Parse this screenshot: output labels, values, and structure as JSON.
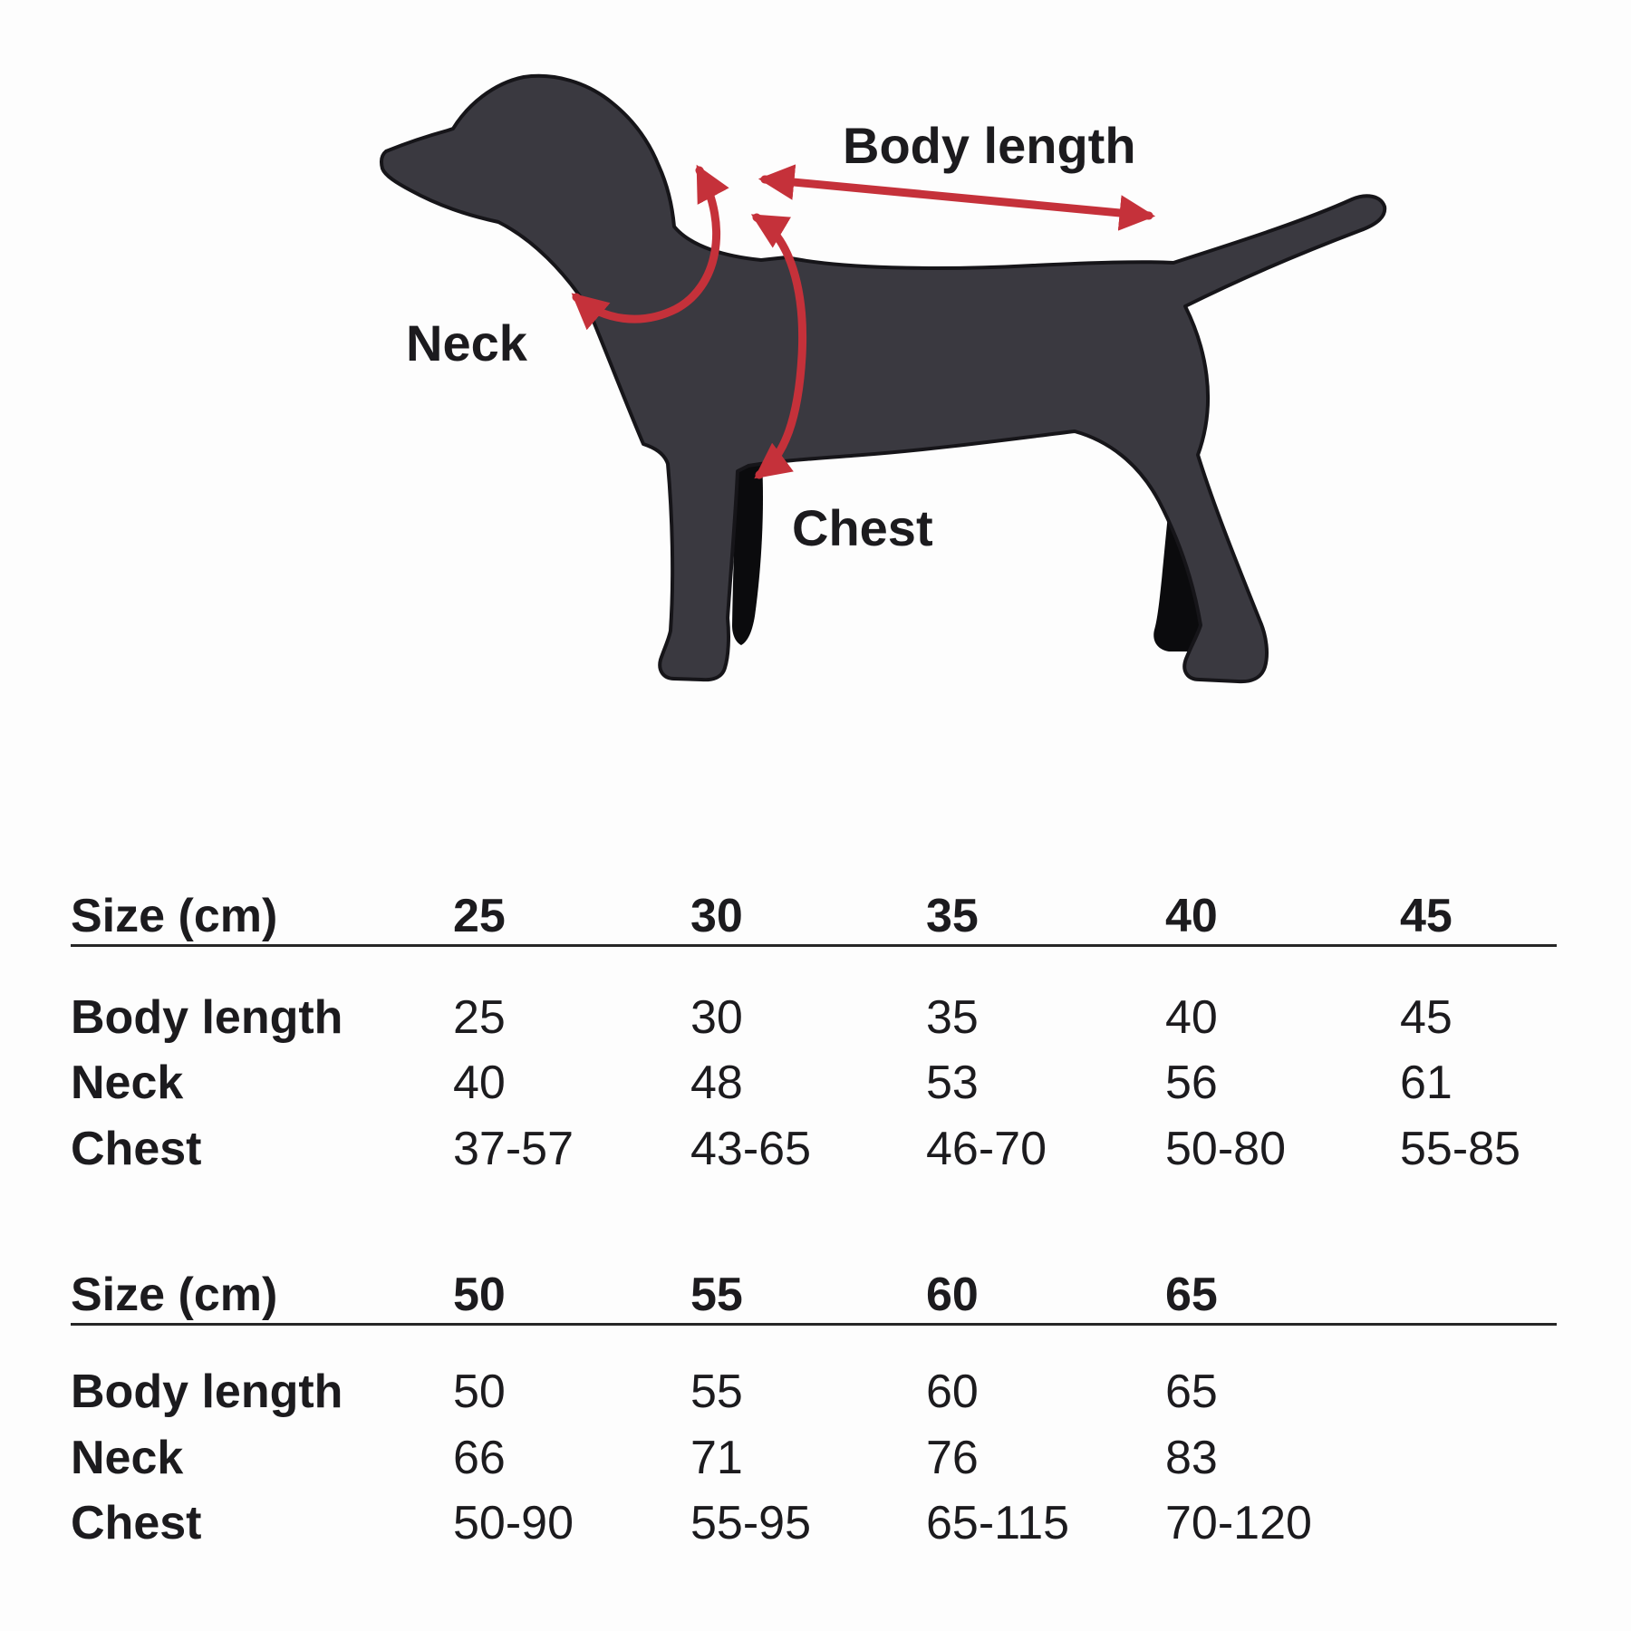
{
  "diagram": {
    "labels": {
      "body_length": "Body length",
      "neck": "Neck",
      "chest": "Chest"
    },
    "icons": [
      "dog-silhouette",
      "neck-girth-arrow",
      "chest-girth-arrow",
      "body-length-arrow"
    ],
    "colors": {
      "dog_body": "#3a3940",
      "dog_outline": "#161519",
      "far_leg": "#0b0b0d",
      "arrow_red": "#c5313a",
      "text": "#1c1b1e",
      "background": "#fdfdfd"
    }
  },
  "tables": [
    {
      "header": [
        "Size (cm)",
        "25",
        "30",
        "35",
        "40",
        "45"
      ],
      "rows": [
        {
          "label": "Body length",
          "values": [
            "25",
            "30",
            "35",
            "40",
            "45"
          ]
        },
        {
          "label": "Neck",
          "values": [
            "40",
            "48",
            "53",
            "56",
            "61"
          ]
        },
        {
          "label": "Chest",
          "values": [
            "37-57",
            "43-65",
            "46-70",
            "50-80",
            "55-85"
          ]
        }
      ]
    },
    {
      "header": [
        "Size (cm)",
        "50",
        "55",
        "60",
        "65"
      ],
      "rows": [
        {
          "label": "Body length",
          "values": [
            "50",
            "55",
            "60",
            "65"
          ]
        },
        {
          "label": "Neck",
          "values": [
            "66",
            "71",
            "76",
            "83"
          ]
        },
        {
          "label": "Chest",
          "values": [
            "50-90",
            "55-95",
            "65-115",
            "70-120"
          ]
        }
      ]
    }
  ]
}
